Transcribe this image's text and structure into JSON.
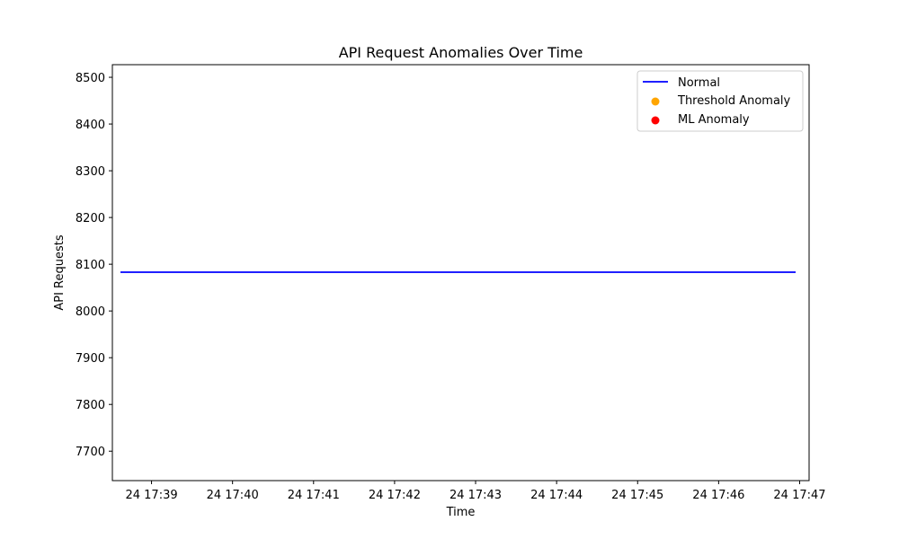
{
  "chart_data": {
    "type": "line",
    "title": "API Request Anomalies Over Time",
    "xlabel": "Time",
    "ylabel": "API Requests",
    "x_ticks": [
      "24 17:39",
      "24 17:40",
      "24 17:41",
      "24 17:42",
      "24 17:43",
      "24 17:44",
      "24 17:45",
      "24 17:46",
      "24 17:47"
    ],
    "y_ticks": [
      7700,
      7800,
      7900,
      8000,
      8100,
      8200,
      8300,
      8400,
      8500
    ],
    "xlim": [
      "24 17:38:31",
      "24 17:47:07"
    ],
    "ylim": [
      7637,
      8527
    ],
    "grid": false,
    "legend_position": "top-right",
    "series": [
      {
        "name": "Normal",
        "kind": "line",
        "color": "#0000ff",
        "points": [
          {
            "x": "24 17:38:37",
            "y": 8083
          },
          {
            "x": "24 17:46:57",
            "y": 8083
          }
        ]
      },
      {
        "name": "Threshold Anomaly",
        "kind": "scatter",
        "color": "#ffa500",
        "points": []
      },
      {
        "name": "ML Anomaly",
        "kind": "scatter",
        "color": "#ff0000",
        "points": []
      }
    ]
  }
}
